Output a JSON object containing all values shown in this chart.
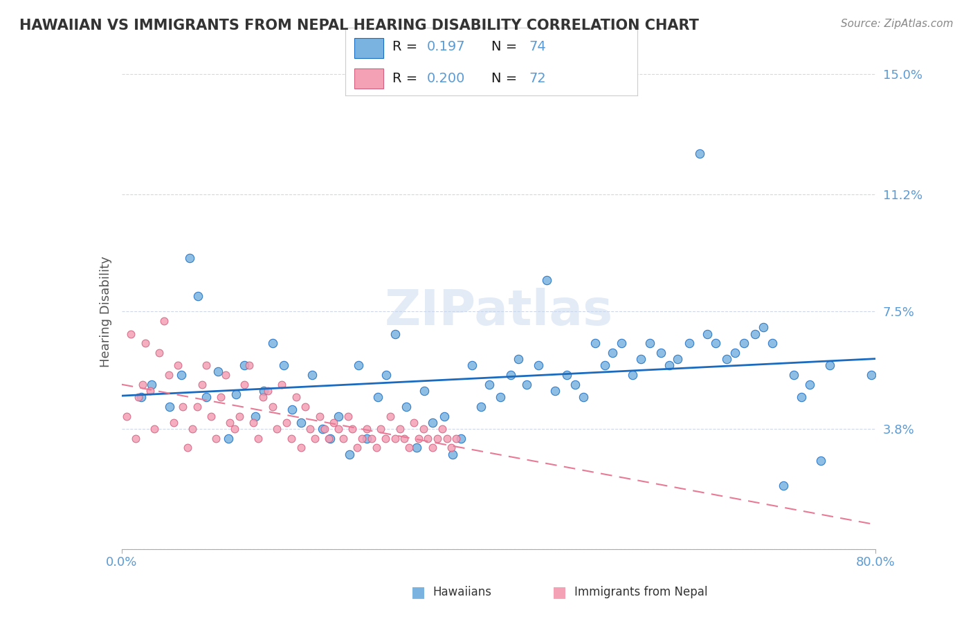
{
  "title": "HAWAIIAN VS IMMIGRANTS FROM NEPAL HEARING DISABILITY CORRELATION CHART",
  "source": "Source: ZipAtlas.com",
  "ylabel": "Hearing Disability",
  "xlim": [
    0.0,
    80.0
  ],
  "ylim": [
    0.0,
    15.0
  ],
  "yticks": [
    0.0,
    3.8,
    7.5,
    11.2,
    15.0
  ],
  "ytick_labels": [
    "",
    "3.8%",
    "7.5%",
    "11.2%",
    "15.0%"
  ],
  "hawaiians_x": [
    2.1,
    3.2,
    5.1,
    6.3,
    7.2,
    8.1,
    9.0,
    10.2,
    11.3,
    12.1,
    13.0,
    14.2,
    15.1,
    16.0,
    17.2,
    18.1,
    19.0,
    20.2,
    21.3,
    22.1,
    23.0,
    24.2,
    25.1,
    26.0,
    27.2,
    28.1,
    29.0,
    30.2,
    31.3,
    32.1,
    33.0,
    34.2,
    35.1,
    36.0,
    37.2,
    38.1,
    39.0,
    40.2,
    41.3,
    42.1,
    43.0,
    44.2,
    45.1,
    46.0,
    47.2,
    48.1,
    49.0,
    50.2,
    51.3,
    52.1,
    53.0,
    54.2,
    55.1,
    56.0,
    57.2,
    58.1,
    59.0,
    60.2,
    61.3,
    62.1,
    63.0,
    64.2,
    65.1,
    66.0,
    67.2,
    68.1,
    69.0,
    70.2,
    71.3,
    72.1,
    73.0,
    74.2,
    75.1,
    79.5
  ],
  "hawaiians_y": [
    4.8,
    5.2,
    4.5,
    5.5,
    9.2,
    8.0,
    4.8,
    5.6,
    3.5,
    4.9,
    5.8,
    4.2,
    5.0,
    6.5,
    5.8,
    4.4,
    4.0,
    5.5,
    3.8,
    3.5,
    4.2,
    3.0,
    5.8,
    3.5,
    4.8,
    5.5,
    6.8,
    4.5,
    3.2,
    5.0,
    4.0,
    4.2,
    3.0,
    3.5,
    5.8,
    4.5,
    5.2,
    4.8,
    5.5,
    6.0,
    5.2,
    5.8,
    8.5,
    5.0,
    5.5,
    5.2,
    4.8,
    6.5,
    5.8,
    6.2,
    6.5,
    5.5,
    6.0,
    6.5,
    6.2,
    5.8,
    6.0,
    6.5,
    12.5,
    6.8,
    6.5,
    6.0,
    6.2,
    6.5,
    6.8,
    7.0,
    6.5,
    2.0,
    5.5,
    4.8,
    5.2,
    2.8,
    5.8,
    5.5
  ],
  "nepal_x": [
    0.5,
    1.0,
    1.5,
    1.8,
    2.2,
    2.5,
    3.0,
    3.5,
    4.0,
    4.5,
    5.0,
    5.5,
    6.0,
    6.5,
    7.0,
    7.5,
    8.0,
    8.5,
    9.0,
    9.5,
    10.0,
    10.5,
    11.0,
    11.5,
    12.0,
    12.5,
    13.0,
    13.5,
    14.0,
    14.5,
    15.0,
    15.5,
    16.0,
    16.5,
    17.0,
    17.5,
    18.0,
    18.5,
    19.0,
    19.5,
    20.0,
    20.5,
    21.0,
    21.5,
    22.0,
    22.5,
    23.0,
    23.5,
    24.0,
    24.5,
    25.0,
    25.5,
    26.0,
    26.5,
    27.0,
    27.5,
    28.0,
    28.5,
    29.0,
    29.5,
    30.0,
    30.5,
    31.0,
    31.5,
    32.0,
    32.5,
    33.0,
    33.5,
    34.0,
    34.5,
    35.0,
    35.5
  ],
  "nepal_y": [
    4.2,
    6.8,
    3.5,
    4.8,
    5.2,
    6.5,
    5.0,
    3.8,
    6.2,
    7.2,
    5.5,
    4.0,
    5.8,
    4.5,
    3.2,
    3.8,
    4.5,
    5.2,
    5.8,
    4.2,
    3.5,
    4.8,
    5.5,
    4.0,
    3.8,
    4.2,
    5.2,
    5.8,
    4.0,
    3.5,
    4.8,
    5.0,
    4.5,
    3.8,
    5.2,
    4.0,
    3.5,
    4.8,
    3.2,
    4.5,
    3.8,
    3.5,
    4.2,
    3.8,
    3.5,
    4.0,
    3.8,
    3.5,
    4.2,
    3.8,
    3.2,
    3.5,
    3.8,
    3.5,
    3.2,
    3.8,
    3.5,
    4.2,
    3.5,
    3.8,
    3.5,
    3.2,
    4.0,
    3.5,
    3.8,
    3.5,
    3.2,
    3.5,
    3.8,
    3.5,
    3.2,
    3.5
  ],
  "hawaiians_color": "#7ab3e0",
  "nepal_color": "#f4a0b5",
  "hawaiians_trend_color": "#1a6bbf",
  "nepal_trend_color": "#e87a96",
  "r_hawaiians": 0.197,
  "n_hawaiians": 74,
  "r_nepal": 0.2,
  "n_nepal": 72,
  "watermark": "ZIPatlas",
  "background_color": "#ffffff",
  "grid_color": "#d0d8e8",
  "title_color": "#333333",
  "tick_label_color": "#5b9bd5"
}
